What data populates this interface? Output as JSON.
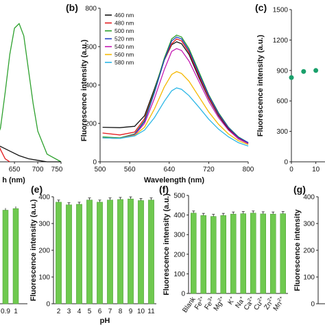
{
  "chart_data": [
    {
      "panel": "a",
      "type": "line",
      "panel_label": "",
      "xlabel": "h (nm)",
      "ylabel": "",
      "xlim": [
        560,
        750
      ],
      "ylim": [
        0,
        1
      ],
      "xticks": [
        650,
        700,
        750
      ],
      "xtick_labels": [
        "650",
        "700",
        "750"
      ],
      "series": [
        {
          "color": "#2ca02c",
          "x": [
            560,
            580,
            600,
            620,
            630,
            640,
            650,
            660,
            670,
            680,
            690,
            700,
            720,
            750
          ],
          "y": [
            0.0,
            0.01,
            0.05,
            0.22,
            0.45,
            0.7,
            0.87,
            0.9,
            0.82,
            0.6,
            0.38,
            0.2,
            0.05,
            0.0
          ]
        },
        {
          "color": "#e31a1c",
          "x": [
            560,
            570,
            580,
            590,
            600,
            610,
            620,
            630,
            640
          ],
          "y": [
            0.62,
            0.55,
            0.45,
            0.35,
            0.25,
            0.16,
            0.08,
            0.02,
            0.0
          ]
        },
        {
          "color": "#111111",
          "x": [
            560,
            580,
            600,
            620,
            640,
            660,
            680,
            700,
            720,
            750
          ],
          "y": [
            0.1,
            0.12,
            0.13,
            0.1,
            0.07,
            0.04,
            0.02,
            0.01,
            0.0,
            0.0
          ]
        }
      ]
    },
    {
      "panel": "b",
      "type": "line",
      "panel_label": "(b)",
      "xlabel": "Wavelength (nm)",
      "ylabel": "Fluorescence intensity (a.u.)",
      "xlim": [
        500,
        800
      ],
      "ylim": [
        0,
        800
      ],
      "xticks": [
        500,
        560,
        640,
        720,
        800
      ],
      "yticks": [
        0,
        200,
        400,
        600,
        800
      ],
      "legend_position": "top-left",
      "x": [
        505,
        540,
        570,
        590,
        610,
        630,
        645,
        655,
        665,
        680,
        700,
        720,
        740,
        760,
        780,
        800
      ],
      "series": [
        {
          "name": "460 nm",
          "color": "#111111",
          "values": [
            180,
            178,
            185,
            240,
            380,
            530,
            610,
            625,
            615,
            560,
            440,
            330,
            240,
            170,
            120,
            95
          ]
        },
        {
          "name": "480 nm",
          "color": "#e31a1c",
          "values": [
            150,
            140,
            155,
            225,
            370,
            530,
            615,
            640,
            630,
            570,
            450,
            335,
            245,
            175,
            125,
            98
          ]
        },
        {
          "name": "500 nm",
          "color": "#2ca02c",
          "values": [
            130,
            125,
            145,
            215,
            370,
            540,
            640,
            660,
            650,
            590,
            470,
            350,
            255,
            180,
            130,
            100
          ]
        },
        {
          "name": "520 nm",
          "color": "#1f3fbf",
          "values": [
            125,
            122,
            142,
            210,
            360,
            530,
            630,
            650,
            640,
            580,
            460,
            345,
            250,
            178,
            128,
            100
          ]
        },
        {
          "name": "540 nm",
          "color": "#c51bb4",
          "values": [
            125,
            122,
            140,
            200,
            330,
            480,
            575,
            590,
            580,
            525,
            420,
            315,
            230,
            165,
            120,
            95
          ]
        },
        {
          "name": "560 nm",
          "color": "#f5b800",
          "values": [
            125,
            122,
            138,
            180,
            275,
            390,
            455,
            470,
            460,
            420,
            340,
            260,
            195,
            145,
            110,
            90
          ]
        },
        {
          "name": "580 nm",
          "color": "#2ab6e6",
          "values": [
            125,
            122,
            135,
            165,
            230,
            315,
            370,
            385,
            378,
            345,
            285,
            222,
            170,
            130,
            100,
            82
          ]
        }
      ]
    },
    {
      "panel": "c",
      "type": "scatter",
      "panel_label": "(c)",
      "xlabel": "",
      "ylabel": "Fluorescence intensity (a.u.)",
      "xlim": [
        0,
        16
      ],
      "ylim": [
        0,
        1500
      ],
      "xticks": [
        0,
        10
      ],
      "yticks": [
        0,
        300,
        600,
        900,
        1200,
        1500
      ],
      "x": [
        0,
        5,
        10,
        15
      ],
      "values": [
        830,
        890,
        900,
        905
      ],
      "color": "#1aa06b"
    },
    {
      "panel": "d",
      "type": "bar",
      "panel_label": "",
      "xlabel": "",
      "ylabel": "",
      "categories": [
        "0.9",
        "1"
      ],
      "tick_labels": [
        "0.9",
        "1"
      ],
      "values": [
        350,
        356
      ],
      "ylim": [
        0,
        400
      ],
      "color": "#6fc94f"
    },
    {
      "panel": "e",
      "type": "bar",
      "panel_label": "(e)",
      "xlabel": "pH",
      "ylabel": "Fluorescence intensity (a.u.)",
      "categories": [
        "2",
        "3",
        "4",
        "5",
        "6",
        "7",
        "8",
        "9",
        "10",
        "11"
      ],
      "values": [
        380,
        370,
        372,
        388,
        380,
        388,
        390,
        392,
        386,
        388
      ],
      "ylim": [
        0,
        400
      ],
      "yticks": [
        0,
        100,
        200,
        300,
        400
      ],
      "color": "#6fc94f"
    },
    {
      "panel": "f",
      "type": "bar",
      "panel_label": "(f)",
      "xlabel": "",
      "ylabel": "Fluorescence intensity (a.u.)",
      "categories": [
        "Blank",
        "Fe2+",
        "Fe3+",
        "Mg2+",
        "K+",
        "Na+",
        "Ca2+",
        "Cu2+",
        "Zn2+",
        "Mn2+"
      ],
      "tick_labels": [
        {
          "base": "Blank",
          "sup": ""
        },
        {
          "base": "Fe",
          "sup": "2+"
        },
        {
          "base": "Fe",
          "sup": "3+"
        },
        {
          "base": "Mg",
          "sup": "2+"
        },
        {
          "base": "K",
          "sup": "+"
        },
        {
          "base": "Na",
          "sup": "+"
        },
        {
          "base": "Ca",
          "sup": "2+"
        },
        {
          "base": "Cu",
          "sup": "2+"
        },
        {
          "base": "Zn",
          "sup": "2+"
        },
        {
          "base": "Mn",
          "sup": "2+"
        }
      ],
      "values": [
        410,
        398,
        393,
        398,
        405,
        407,
        410,
        406,
        405,
        407
      ],
      "ylim": [
        0,
        500
      ],
      "yticks": [
        0,
        100,
        200,
        300,
        400,
        500
      ],
      "color": "#6fc94f"
    },
    {
      "panel": "g",
      "type": "bar",
      "panel_label": "(g)",
      "xlabel": "",
      "ylabel": "Fluorescence intensity",
      "ylim": [
        0,
        400
      ],
      "yticks": [
        0,
        100,
        200,
        300,
        400
      ]
    }
  ]
}
